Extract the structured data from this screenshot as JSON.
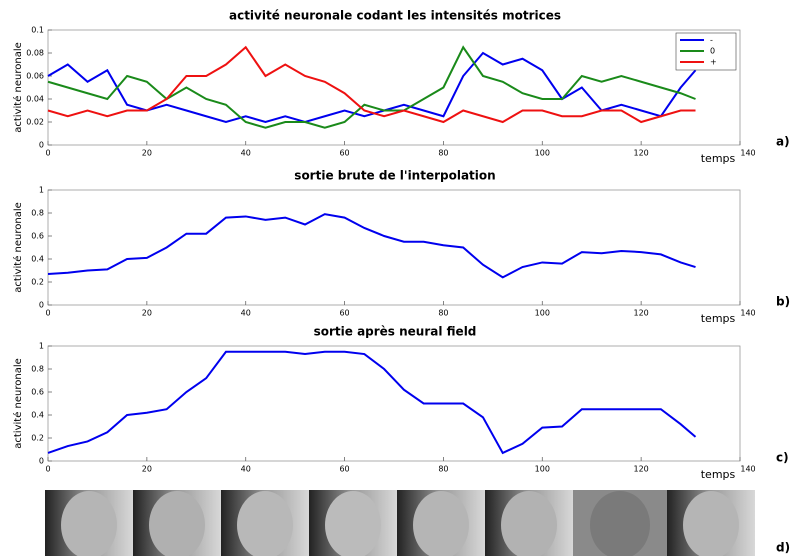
{
  "chart_data": [
    {
      "type": "line",
      "title": "activité neuronale codant les intensités motrices",
      "xlabel": "temps",
      "ylabel": "activité neuronale",
      "panel_label": "a)",
      "x": [
        0,
        4,
        8,
        12,
        16,
        20,
        24,
        28,
        32,
        36,
        40,
        44,
        48,
        52,
        56,
        60,
        64,
        68,
        72,
        76,
        80,
        84,
        88,
        92,
        96,
        100,
        104,
        108,
        112,
        116,
        120,
        124,
        128,
        131
      ],
      "series": [
        {
          "name": "-",
          "color": "#0000ee",
          "values": [
            0.06,
            0.07,
            0.055,
            0.065,
            0.035,
            0.03,
            0.035,
            0.03,
            0.025,
            0.02,
            0.025,
            0.02,
            0.025,
            0.02,
            0.025,
            0.03,
            0.025,
            0.03,
            0.035,
            0.03,
            0.025,
            0.06,
            0.08,
            0.07,
            0.075,
            0.065,
            0.04,
            0.05,
            0.03,
            0.035,
            0.03,
            0.025,
            0.05,
            0.065
          ]
        },
        {
          "name": "0",
          "color": "#1a8a1a",
          "values": [
            0.055,
            0.05,
            0.045,
            0.04,
            0.06,
            0.055,
            0.04,
            0.05,
            0.04,
            0.035,
            0.02,
            0.015,
            0.02,
            0.02,
            0.015,
            0.02,
            0.035,
            0.03,
            0.03,
            0.04,
            0.05,
            0.085,
            0.06,
            0.055,
            0.045,
            0.04,
            0.04,
            0.06,
            0.055,
            0.06,
            0.055,
            0.05,
            0.045,
            0.04
          ]
        },
        {
          "name": "+",
          "color": "#ee1111",
          "values": [
            0.03,
            0.025,
            0.03,
            0.025,
            0.03,
            0.03,
            0.04,
            0.06,
            0.06,
            0.07,
            0.085,
            0.06,
            0.07,
            0.06,
            0.055,
            0.045,
            0.03,
            0.025,
            0.03,
            0.025,
            0.02,
            0.03,
            0.025,
            0.02,
            0.03,
            0.03,
            0.025,
            0.025,
            0.03,
            0.03,
            0.02,
            0.025,
            0.03,
            0.03
          ]
        }
      ],
      "xlim": [
        0,
        140
      ],
      "xticks": [
        0,
        20,
        40,
        60,
        80,
        100,
        120,
        140
      ],
      "ylim": [
        0,
        0.1
      ],
      "yticks": [
        0,
        0.02,
        0.04,
        0.06,
        0.08,
        0.1
      ],
      "legend": "upper right"
    },
    {
      "type": "line",
      "title": "sortie brute de l'interpolation",
      "xlabel": "temps",
      "ylabel": "activité neuronale",
      "panel_label": "b)",
      "x": [
        0,
        4,
        8,
        12,
        16,
        20,
        24,
        28,
        32,
        36,
        40,
        44,
        48,
        52,
        56,
        60,
        64,
        68,
        72,
        76,
        80,
        84,
        88,
        92,
        96,
        100,
        104,
        108,
        112,
        116,
        120,
        124,
        128,
        131
      ],
      "color": "#0000ee",
      "values": [
        0.27,
        0.28,
        0.3,
        0.31,
        0.4,
        0.41,
        0.5,
        0.62,
        0.62,
        0.76,
        0.77,
        0.74,
        0.76,
        0.7,
        0.79,
        0.76,
        0.67,
        0.6,
        0.55,
        0.55,
        0.52,
        0.5,
        0.35,
        0.24,
        0.33,
        0.37,
        0.36,
        0.46,
        0.45,
        0.47,
        0.46,
        0.44,
        0.37,
        0.33
      ],
      "xlim": [
        0,
        140
      ],
      "xticks": [
        0,
        20,
        40,
        60,
        80,
        100,
        120,
        140
      ],
      "ylim": [
        0,
        1
      ],
      "yticks": [
        0,
        0.2,
        0.4,
        0.6,
        0.8,
        1
      ]
    },
    {
      "type": "line",
      "title": "sortie après neural field",
      "xlabel": "temps",
      "ylabel": "activité neuronale",
      "panel_label": "c)",
      "x": [
        0,
        4,
        8,
        12,
        16,
        20,
        24,
        28,
        32,
        36,
        40,
        44,
        48,
        52,
        56,
        60,
        64,
        68,
        72,
        76,
        80,
        84,
        88,
        92,
        96,
        100,
        104,
        108,
        112,
        116,
        120,
        124,
        128,
        131
      ],
      "color": "#0000ee",
      "values": [
        0.07,
        0.13,
        0.17,
        0.25,
        0.4,
        0.42,
        0.45,
        0.6,
        0.72,
        0.95,
        0.95,
        0.95,
        0.95,
        0.93,
        0.95,
        0.95,
        0.93,
        0.8,
        0.62,
        0.5,
        0.5,
        0.5,
        0.38,
        0.07,
        0.15,
        0.29,
        0.3,
        0.45,
        0.45,
        0.45,
        0.45,
        0.45,
        0.32,
        0.21
      ],
      "xlim": [
        0,
        140
      ],
      "xticks": [
        0,
        20,
        40,
        60,
        80,
        100,
        120,
        140
      ],
      "ylim": [
        0,
        1
      ],
      "yticks": [
        0,
        0.2,
        0.4,
        0.6,
        0.8,
        1
      ]
    }
  ],
  "photo_strip": {
    "label": "d)"
  }
}
